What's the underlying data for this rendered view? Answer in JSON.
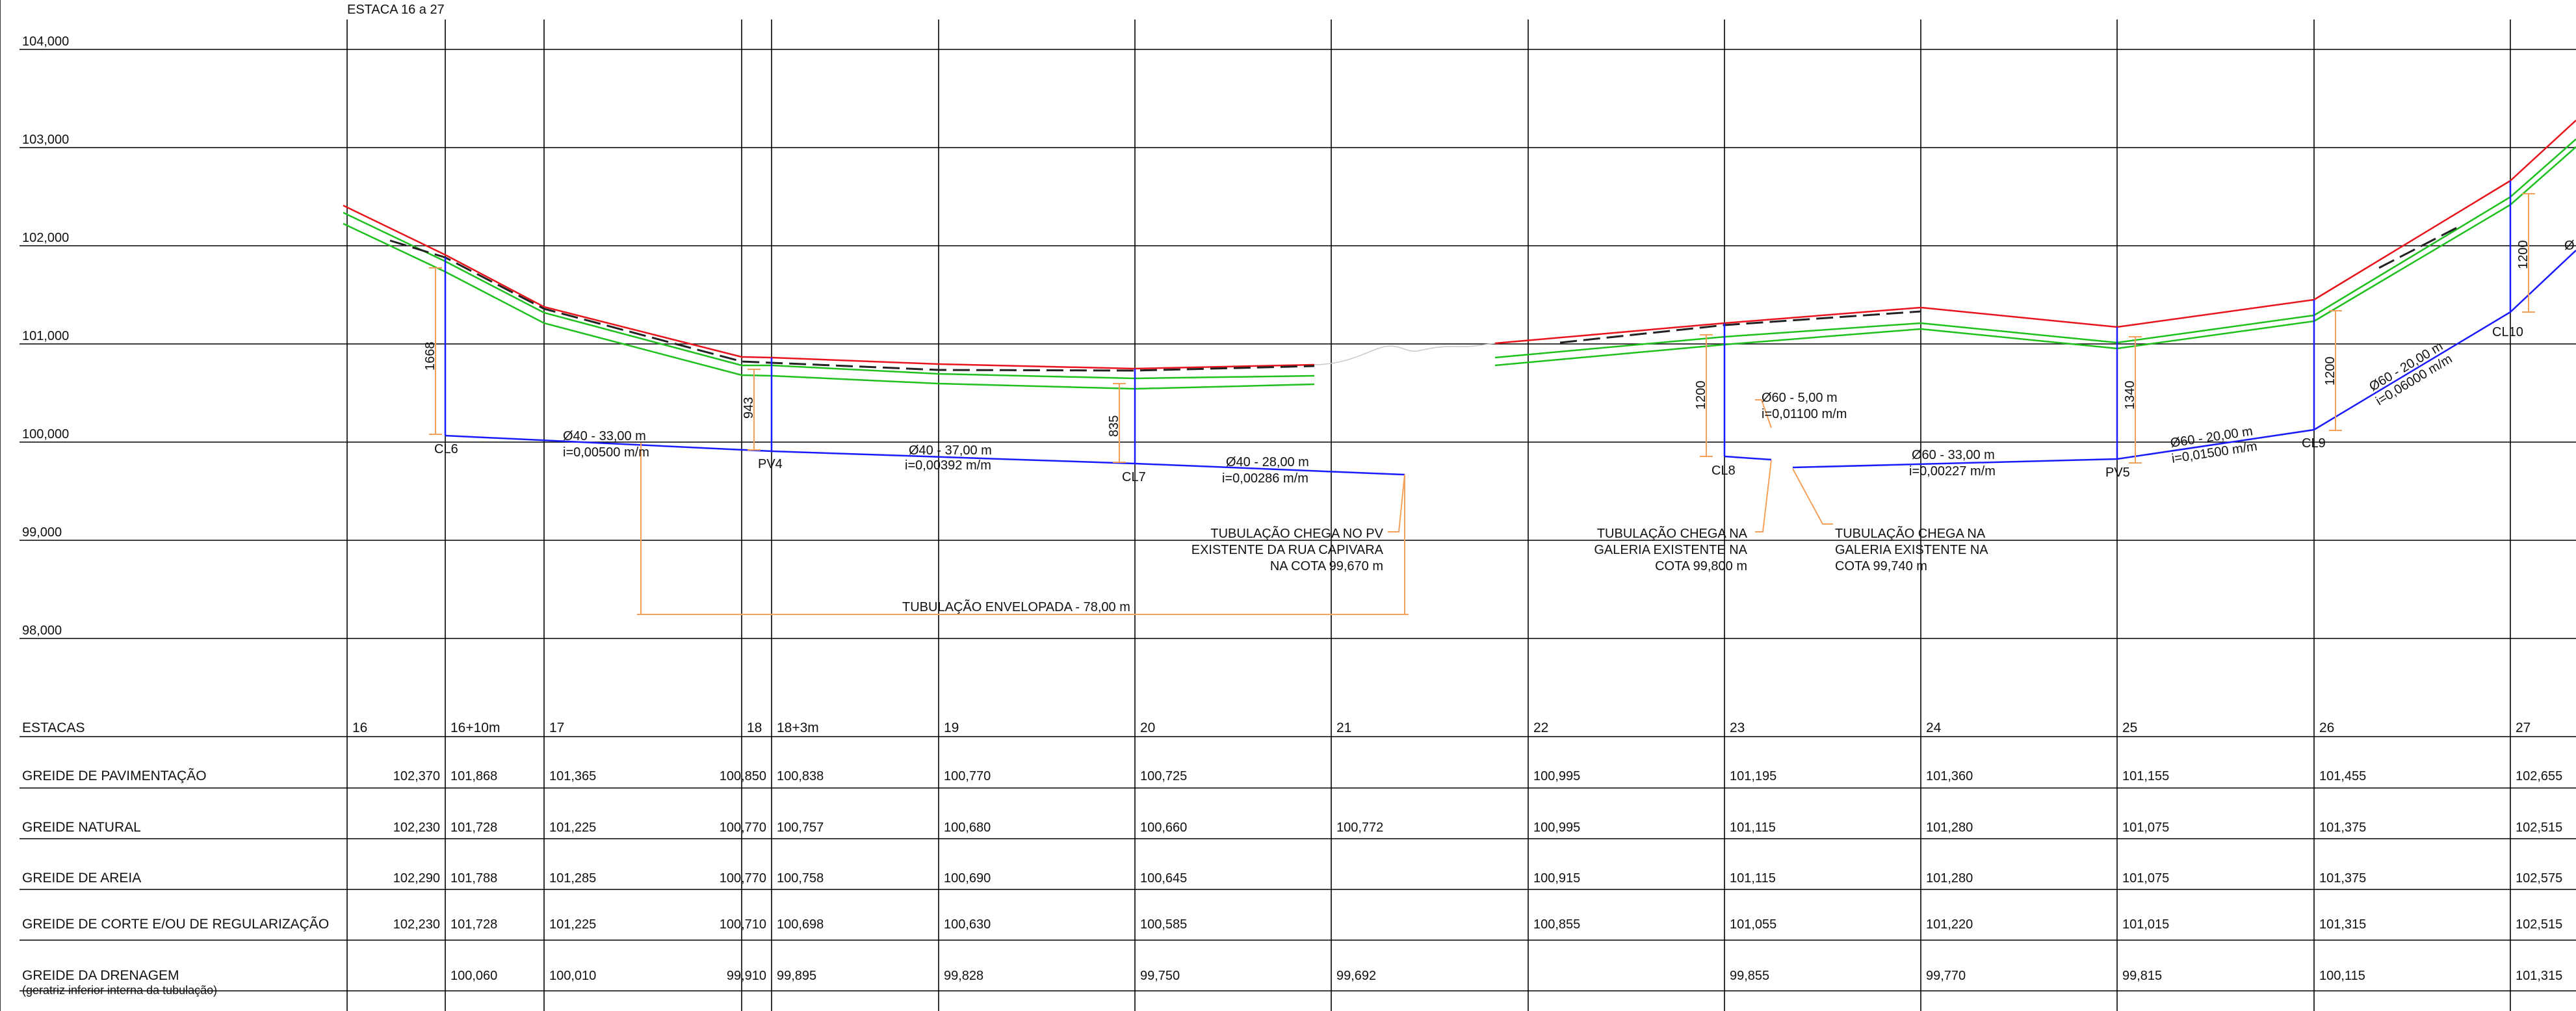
{
  "title": "ESTACA 16 a 27",
  "elevations": [
    "104,000",
    "103,000",
    "102,000",
    "101,000",
    "100,000",
    "99,000",
    "98,000"
  ],
  "colors": {
    "pavement": "#e8141b",
    "sand": "#1dc01d",
    "drainage": "#1a1aff",
    "dimension": "#f5a05a",
    "natural": "#222222",
    "grid": "#000000"
  },
  "stations": [
    "16",
    "16+10m",
    "17",
    "18",
    "18+3m",
    "19",
    "20",
    "21",
    "22",
    "23",
    "24",
    "25",
    "26",
    "27"
  ],
  "table": {
    "header_label": "ESTACAS",
    "rows": [
      {
        "label": "GREIDE DE PAVIMENTAÇÃO",
        "values": [
          "102,370",
          "101,868",
          "101,365",
          "100,850",
          "100,838",
          "100,770",
          "100,725",
          "",
          "100,995",
          "101,195",
          "101,360",
          "101,155",
          "101,455",
          "102,655"
        ]
      },
      {
        "label": "GREIDE NATURAL",
        "values": [
          "102,230",
          "101,728",
          "101,225",
          "100,770",
          "100,757",
          "100,680",
          "100,660",
          "100,772",
          "100,995",
          "101,115",
          "101,280",
          "101,075",
          "101,375",
          "102,515"
        ]
      },
      {
        "label": "GREIDE DE AREIA",
        "values": [
          "102,290",
          "101,788",
          "101,285",
          "100,770",
          "100,758",
          "100,690",
          "100,645",
          "",
          "100,915",
          "101,115",
          "101,280",
          "101,075",
          "101,375",
          "102,575"
        ]
      },
      {
        "label": "GREIDE DE CORTE E/OU DE REGULARIZAÇÃO",
        "values": [
          "102,230",
          "101,728",
          "101,225",
          "100,710",
          "100,698",
          "100,630",
          "100,585",
          "",
          "100,855",
          "101,055",
          "101,220",
          "101,015",
          "101,315",
          "102,515"
        ]
      },
      {
        "label": "GREIDE DA DRENAGEM",
        "sublabel": "(geratriz inferior interna da tubulação)",
        "values": [
          "",
          "100,060",
          "100,010",
          "99,910",
          "99,895",
          "99,828",
          "99,750",
          "99,692",
          "",
          "99,855",
          "99,770",
          "99,815",
          "100,115",
          "101,315"
        ]
      }
    ]
  },
  "nodes": {
    "cl6": "CL6",
    "pv4": "PV4",
    "cl7": "CL7",
    "cl8": "CL8",
    "pv5": "PV5",
    "cl9": "CL9",
    "cl10": "CL10"
  },
  "depths": {
    "cl6": "1668",
    "pv4": "943",
    "cl7": "835",
    "cl8": "1200",
    "pv5": "1340",
    "cl9": "1200",
    "cl10": "1200"
  },
  "pipes": {
    "p1": {
      "dim": "Ø40 - 33,00 m",
      "slope": "i=0,00500 m/m"
    },
    "p2": {
      "dim": "Ø40 - 37,00 m",
      "slope": "i=0,00392 m/m"
    },
    "p3": {
      "dim": "Ø40 - 28,00 m",
      "slope": "i=0,00286 m/m"
    },
    "p4": {
      "dim": "Ø60 - 5,00 m",
      "slope": "i=0,01100 m/m"
    },
    "p5": {
      "dim": "Ø60 - 33,00 m",
      "slope": "i=0,00227 m/m"
    },
    "p6": {
      "dim": "Ø60 - 20,00 m",
      "slope": "i=0,01500 m/m"
    },
    "p7": {
      "dim": "Ø60 - 20,00 m",
      "slope": "i=0,06000 m/m"
    },
    "p8_fragment": "Ø"
  },
  "notes": {
    "note1": [
      "TUBULAÇÃO CHEGA NO PV",
      "EXISTENTE DA RUA CAPIVARA",
      "NA COTA 99,670 m"
    ],
    "note2": [
      "TUBULAÇÃO CHEGA NA",
      "GALERIA EXISTENTE NA",
      "COTA 99,800 m"
    ],
    "note3": [
      "TUBULAÇÃO CHEGA NA",
      "GALERIA EXISTENTE NA",
      "COTA 99,740 m"
    ],
    "envelope": "TUBULAÇÃO ENVELOPADA - 78,00 m"
  }
}
